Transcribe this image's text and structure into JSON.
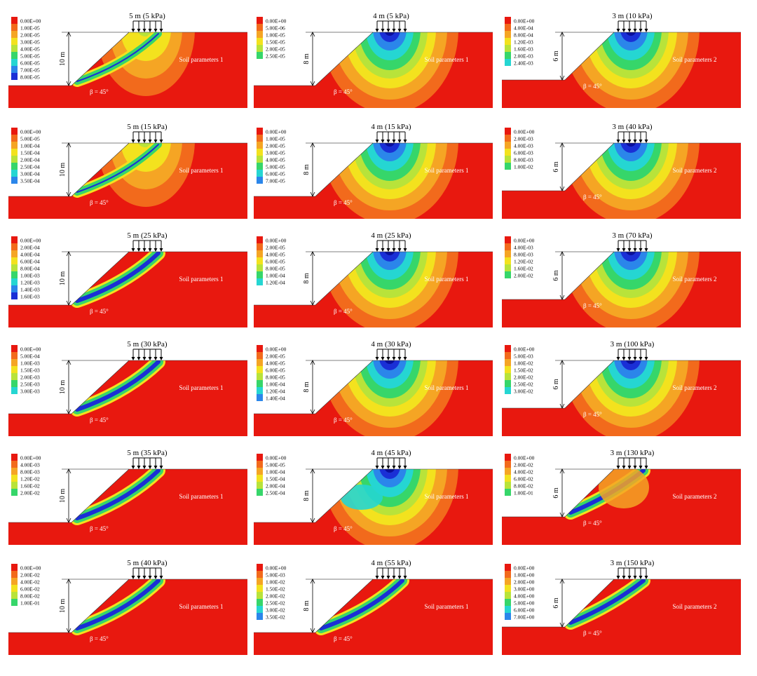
{
  "figure": {
    "slope_angle_label": "β = 45°",
    "colors": {
      "red": "#e8180f",
      "orange": "#f26a1c",
      "lightorange": "#f5a524",
      "yellow": "#f3e21e",
      "lime": "#b8e33a",
      "green": "#36d66a",
      "cyan": "#25d6d2",
      "lightblue": "#2b86ea",
      "blue": "#1a2fd6",
      "navy": "#0a0f9a",
      "white": "#ffffff"
    },
    "panels": [
      {
        "title": "5 m (5 kPa)",
        "height_label": "10 m",
        "soil_label": "Soil parameters 1",
        "legend": [
          "0.00E+00",
          "1.00E-05",
          "2.00E-05",
          "3.00E-05",
          "4.00E-05",
          "5.00E-05",
          "6.00E-05",
          "7.00E-05",
          "8.00E-05"
        ],
        "pattern": "bulb-weak"
      },
      {
        "title": "4 m (5 kPa)",
        "height_label": "8 m",
        "soil_label": "Soil parameters 1",
        "legend": [
          "0.00E+00",
          "5.00E-06",
          "1.00E-05",
          "1.50E-05",
          "2.00E-05",
          "2.50E-05"
        ],
        "pattern": "bulb"
      },
      {
        "title": "3 m (10 kPa)",
        "height_label": "6 m",
        "soil_label": "Soil parameters 2",
        "legend": [
          "0.00E+00",
          "4.00E-04",
          "8.00E-04",
          "1.20E-03",
          "1.60E-03",
          "2.00E-03",
          "2.40E-03"
        ],
        "pattern": "bulb"
      },
      {
        "title": "5 m (15 kPa)",
        "height_label": "10 m",
        "soil_label": "Soil parameters 1",
        "legend": [
          "0.00E+00",
          "5.00E-05",
          "1.00E-04",
          "1.50E-04",
          "2.00E-04",
          "2.50E-04",
          "3.00E-04",
          "3.50E-04"
        ],
        "pattern": "bulb-weak"
      },
      {
        "title": "4 m (15 kPa)",
        "height_label": "8 m",
        "soil_label": "Soil parameters 1",
        "legend": [
          "0.00E+00",
          "1.00E-05",
          "2.00E-05",
          "3.00E-05",
          "4.00E-05",
          "5.00E-05",
          "6.00E-05",
          "7.00E-05"
        ],
        "pattern": "bulb"
      },
      {
        "title": "3 m (40 kPa)",
        "height_label": "6 m",
        "soil_label": "Soil parameters 2",
        "legend": [
          "0.00E+00",
          "2.00E-03",
          "4.00E-03",
          "6.00E-03",
          "8.00E-03",
          "1.00E-02"
        ],
        "pattern": "bulb"
      },
      {
        "title": "5 m (25 kPa)",
        "height_label": "10 m",
        "soil_label": "Soil parameters 1",
        "legend": [
          "0.00E+00",
          "2.00E-04",
          "4.00E-04",
          "6.00E-04",
          "8.00E-04",
          "1.00E-03",
          "1.20E-03",
          "1.40E-03",
          "1.60E-03"
        ],
        "pattern": "arc"
      },
      {
        "title": "4 m (25 kPa)",
        "height_label": "8 m",
        "soil_label": "Soil parameters 1",
        "legend": [
          "0.00E+00",
          "2.00E-05",
          "4.00E-05",
          "6.00E-05",
          "8.00E-05",
          "1.00E-04",
          "1.20E-04"
        ],
        "pattern": "bulb"
      },
      {
        "title": "3 m (70 kPa)",
        "height_label": "6 m",
        "soil_label": "Soil parameters 2",
        "legend": [
          "0.00E+00",
          "4.00E-03",
          "8.00E-03",
          "1.20E-02",
          "1.60E-02",
          "2.00E-02"
        ],
        "pattern": "bulb"
      },
      {
        "title": "5 m (30 kPa)",
        "height_label": "10 m",
        "soil_label": "Soil parameters 1",
        "legend": [
          "0.00E+00",
          "5.00E-04",
          "1.00E-03",
          "1.50E-03",
          "2.00E-03",
          "2.50E-03",
          "3.00E-03"
        ],
        "pattern": "arc"
      },
      {
        "title": "4 m (30 kPa)",
        "height_label": "8 m",
        "soil_label": "Soil parameters 1",
        "legend": [
          "0.00E+00",
          "2.00E-05",
          "4.00E-05",
          "6.00E-05",
          "8.00E-05",
          "1.00E-04",
          "1.20E-04",
          "1.40E-04"
        ],
        "pattern": "bulb"
      },
      {
        "title": "3 m (100 kPa)",
        "height_label": "6 m",
        "soil_label": "Soil parameters 2",
        "legend": [
          "0.00E+00",
          "5.00E-03",
          "1.00E-02",
          "1.50E-02",
          "2.00E-02",
          "2.50E-02",
          "3.00E-02"
        ],
        "pattern": "bulb"
      },
      {
        "title": "5 m (35 kPa)",
        "height_label": "10 m",
        "soil_label": "Soil parameters 1",
        "legend": [
          "0.00E+00",
          "4.00E-03",
          "8.00E-03",
          "1.20E-02",
          "1.60E-02",
          "2.00E-02"
        ],
        "pattern": "arc"
      },
      {
        "title": "4 m (45 kPa)",
        "height_label": "8 m",
        "soil_label": "Soil parameters 1",
        "legend": [
          "0.00E+00",
          "5.00E-05",
          "1.00E-04",
          "1.50E-04",
          "2.00E-04",
          "2.50E-04"
        ],
        "pattern": "bulb-mixed"
      },
      {
        "title": "3 m (130 kPa)",
        "height_label": "6 m",
        "soil_label": "Soil parameters 2",
        "legend": [
          "0.00E+00",
          "2.00E-02",
          "4.00E-02",
          "6.00E-02",
          "8.00E-02",
          "1.00E-01"
        ],
        "pattern": "mixed-arc"
      },
      {
        "title": "5 m (40 kPa)",
        "height_label": "10 m",
        "soil_label": "Soil parameters 1",
        "legend": [
          "0.00E+00",
          "2.00E-02",
          "4.00E-02",
          "6.00E-02",
          "8.00E-02",
          "1.00E-01"
        ],
        "pattern": "arc"
      },
      {
        "title": "4 m (55 kPa)",
        "height_label": "8 m",
        "soil_label": "Soil parameters 1",
        "legend": [
          "0.00E+00",
          "5.00E-03",
          "1.00E-02",
          "1.50E-02",
          "2.00E-02",
          "2.50E-02",
          "3.00E-02",
          "3.50E-02"
        ],
        "pattern": "arc"
      },
      {
        "title": "3 m (150 kPa)",
        "height_label": "6 m",
        "soil_label": "Soil parameters 2",
        "legend": [
          "0.00E+00",
          "1.00E+00",
          "2.00E+00",
          "3.00E+00",
          "4.00E+00",
          "5.00E+00",
          "6.00E+00",
          "7.00E+00"
        ],
        "pattern": "arc"
      }
    ]
  }
}
